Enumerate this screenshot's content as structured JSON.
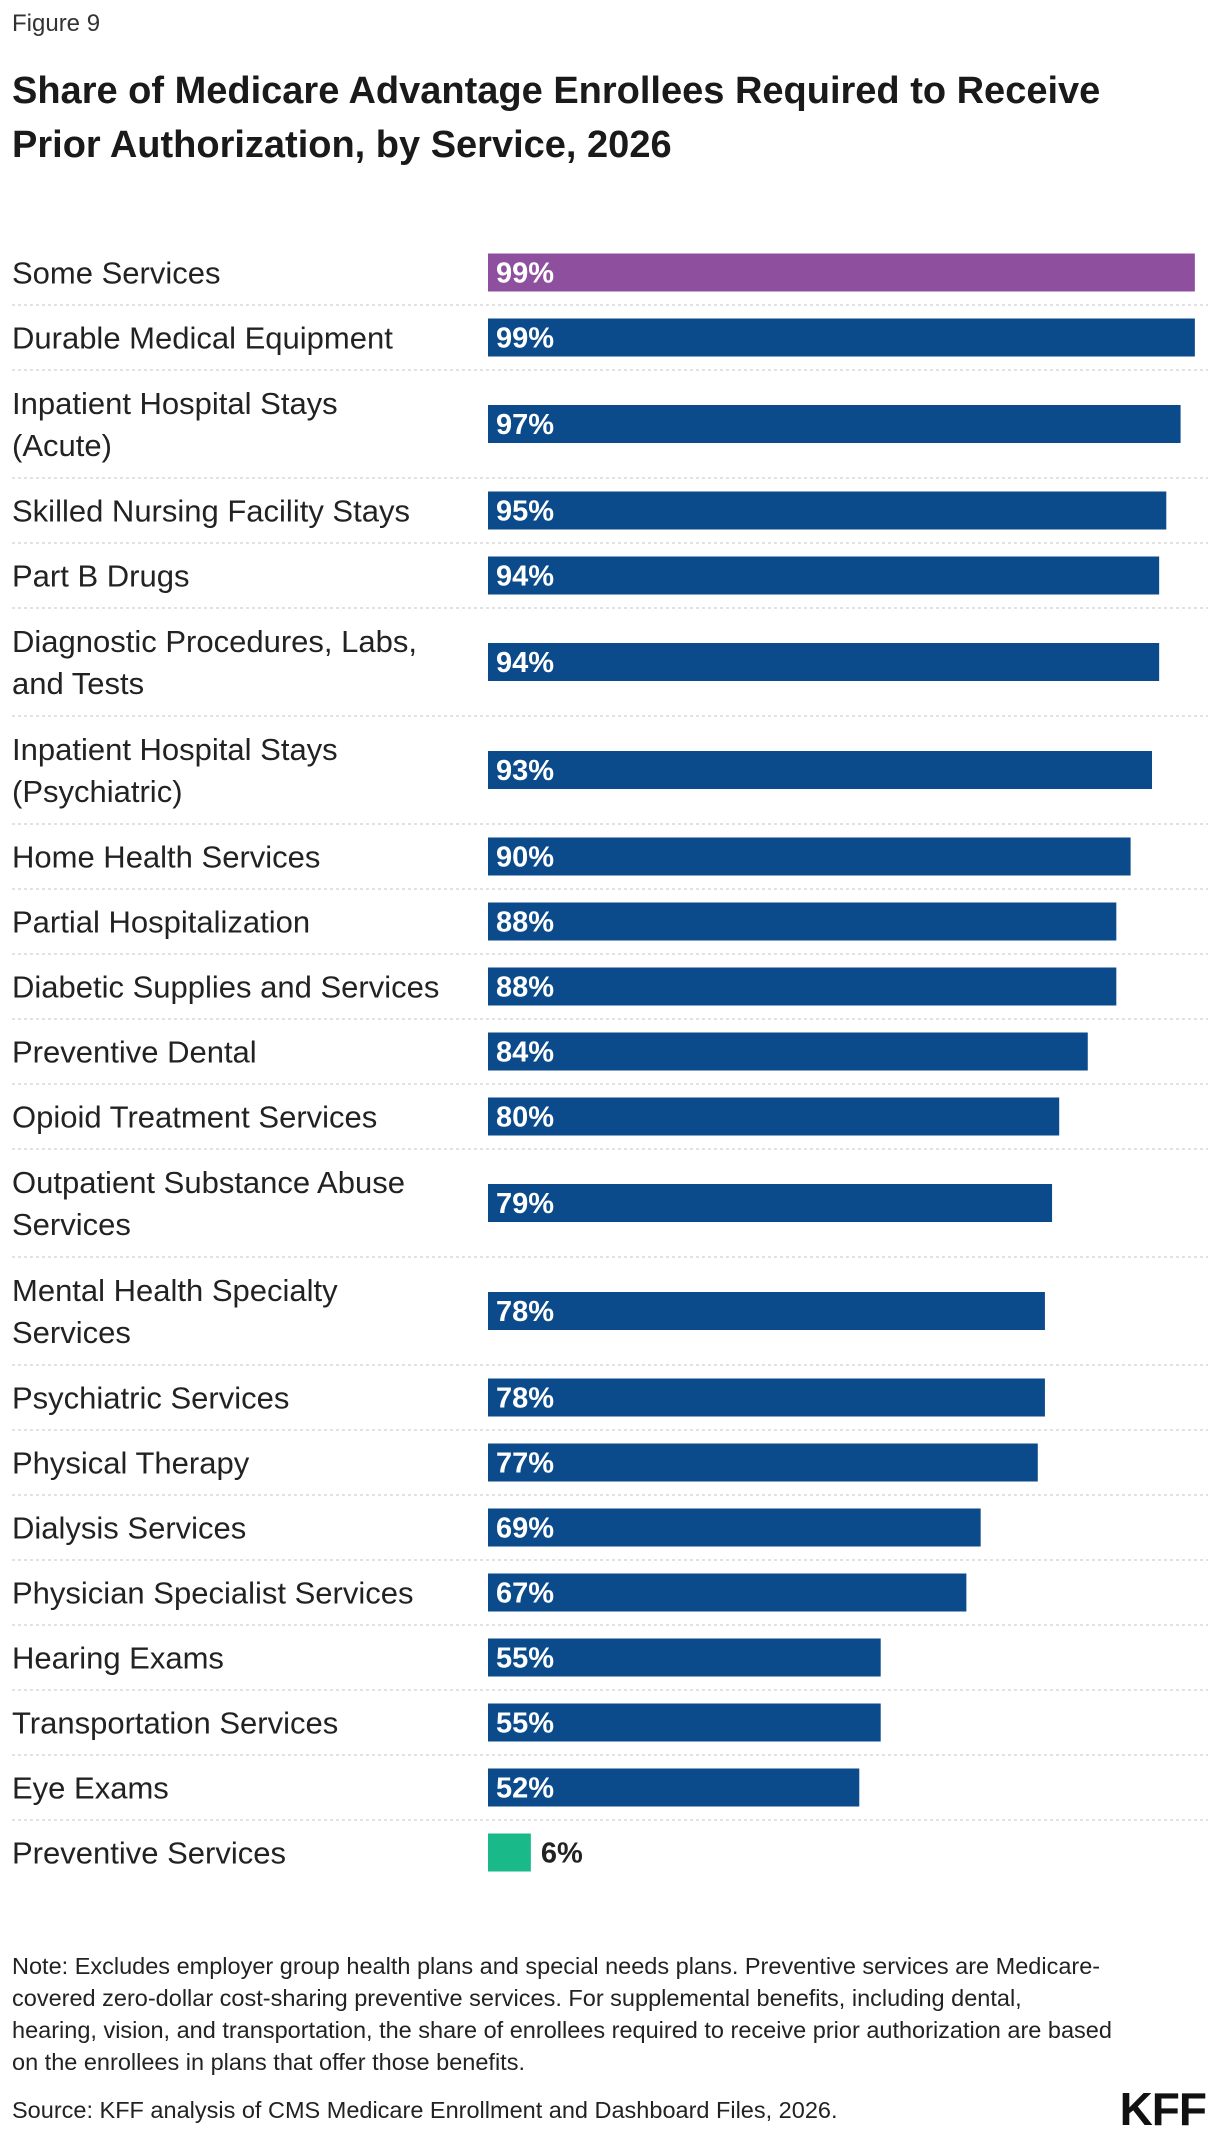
{
  "figure_label": "Figure 9",
  "title_line1": "Share of Medicare Advantage Enrollees Required to Receive",
  "title_line2": "Prior Authorization, by Service, 2026",
  "note": "Note: Excludes employer group health plans and special needs plans. Preventive services are Medicare-covered zero-dollar cost-sharing preventive services. For supplemental benefits, including dental, hearing, vision, and transportation, the share of enrollees required to receive prior authorization are based on the enrollees in plans that offer those benefits.",
  "source": "Source: KFF analysis of CMS Medicare Enrollment and Dashboard Files, 2026.",
  "logo_text": "KFF",
  "colors": {
    "highlight": "#8f4f9f",
    "primary": "#0b4a8b",
    "preventive": "#1ab98a",
    "divider": "#d9d9d9"
  },
  "chart_data": {
    "type": "bar",
    "orientation": "horizontal",
    "xlim": [
      0,
      100
    ],
    "grid": false,
    "categories": [
      [
        "Some Services"
      ],
      [
        "Durable Medical Equipment"
      ],
      [
        "Inpatient Hospital Stays",
        "(Acute)"
      ],
      [
        "Skilled Nursing Facility Stays"
      ],
      [
        "Part B Drugs"
      ],
      [
        "Diagnostic Procedures, Labs,",
        "and Tests"
      ],
      [
        "Inpatient Hospital Stays",
        "(Psychiatric)"
      ],
      [
        "Home Health Services"
      ],
      [
        "Partial Hospitalization"
      ],
      [
        "Diabetic Supplies and Services"
      ],
      [
        "Preventive Dental"
      ],
      [
        "Opioid Treatment Services"
      ],
      [
        "Outpatient Substance Abuse",
        "Services"
      ],
      [
        "Mental Health Specialty",
        "Services"
      ],
      [
        "Psychiatric Services"
      ],
      [
        "Physical Therapy"
      ],
      [
        "Dialysis Services"
      ],
      [
        "Physician Specialist Services"
      ],
      [
        "Hearing Exams"
      ],
      [
        "Transportation Services"
      ],
      [
        "Eye Exams"
      ],
      [
        "Preventive Services"
      ]
    ],
    "values": [
      99,
      99,
      97,
      95,
      94,
      94,
      93,
      90,
      88,
      88,
      84,
      80,
      79,
      78,
      78,
      77,
      69,
      67,
      55,
      55,
      52,
      6
    ],
    "value_labels": [
      "99%",
      "99%",
      "97%",
      "95%",
      "94%",
      "94%",
      "93%",
      "90%",
      "88%",
      "88%",
      "84%",
      "80%",
      "79%",
      "78%",
      "78%",
      "77%",
      "69%",
      "67%",
      "55%",
      "55%",
      "52%",
      "6%"
    ],
    "bar_colors": [
      "highlight",
      "primary",
      "primary",
      "primary",
      "primary",
      "primary",
      "primary",
      "primary",
      "primary",
      "primary",
      "primary",
      "primary",
      "primary",
      "primary",
      "primary",
      "primary",
      "primary",
      "primary",
      "primary",
      "primary",
      "primary",
      "preventive"
    ]
  }
}
